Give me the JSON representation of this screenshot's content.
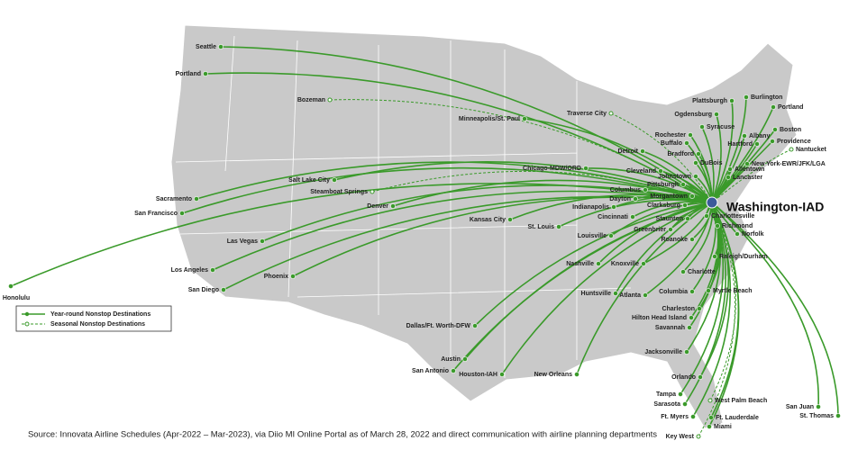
{
  "hub": {
    "label": "Washington-IAD"
  },
  "routes": {
    "year_round": [
      "Seattle",
      "Portland",
      "Minneapolis/St. Paul",
      "Salt Lake City",
      "Sacramento",
      "San Francisco",
      "Honolulu",
      "Las Vegas",
      "Los Angeles",
      "San Diego",
      "Phoenix",
      "Denver",
      "Kansas City",
      "St. Louis",
      "Dallas/Ft. Worth-DFW",
      "Austin",
      "San Antonio",
      "Houston-IAH",
      "New Orleans",
      "Chicago-MDW/ORD",
      "Detroit",
      "Cleveland",
      "Columbus",
      "Dayton",
      "Indianapolis",
      "Cincinnati",
      "Louisville",
      "Nashville",
      "Knoxville",
      "Huntsville",
      "Atlanta",
      "Pittsburgh",
      "Morgantown",
      "Clarksburg",
      "Johnstown",
      "Bradford",
      "DuBois",
      "Rochester",
      "Buffalo",
      "Plattsburgh",
      "Burlington",
      "Ogdensburg",
      "Syracuse",
      "Albany",
      "Hartford",
      "Portland",
      "Boston",
      "Providence",
      "New York-EWR/JFK/LGA",
      "Allentown",
      "Lancaster",
      "Charlottesville",
      "Richmond",
      "Norfolk",
      "Staunton",
      "Greenbrier",
      "Roanoke",
      "Raleigh/Durham",
      "Charlotte",
      "Columbia",
      "Myrtle Beach",
      "Charleston",
      "Hilton Head Island",
      "Savannah",
      "Jacksonville",
      "Orlando",
      "Tampa",
      "Sarasota",
      "Ft. Myers",
      "Ft. Lauderdale",
      "Miami",
      "San Juan",
      "St. Thomas"
    ],
    "seasonal": [
      "Bozeman",
      "Traverse City",
      "Steamboat Springs",
      "Nantucket",
      "West Palm Beach",
      "Key West"
    ]
  },
  "legend": {
    "year_round": "Year-round Nonstop Destinations",
    "seasonal": "Seasonal Nonstop Destinations"
  },
  "source": "Source: Innovata Airline Schedules (Apr-2022 – Mar-2023), via Diio MI Online Portal as of March 28, 2022 and direct communication with airline planning departments"
}
